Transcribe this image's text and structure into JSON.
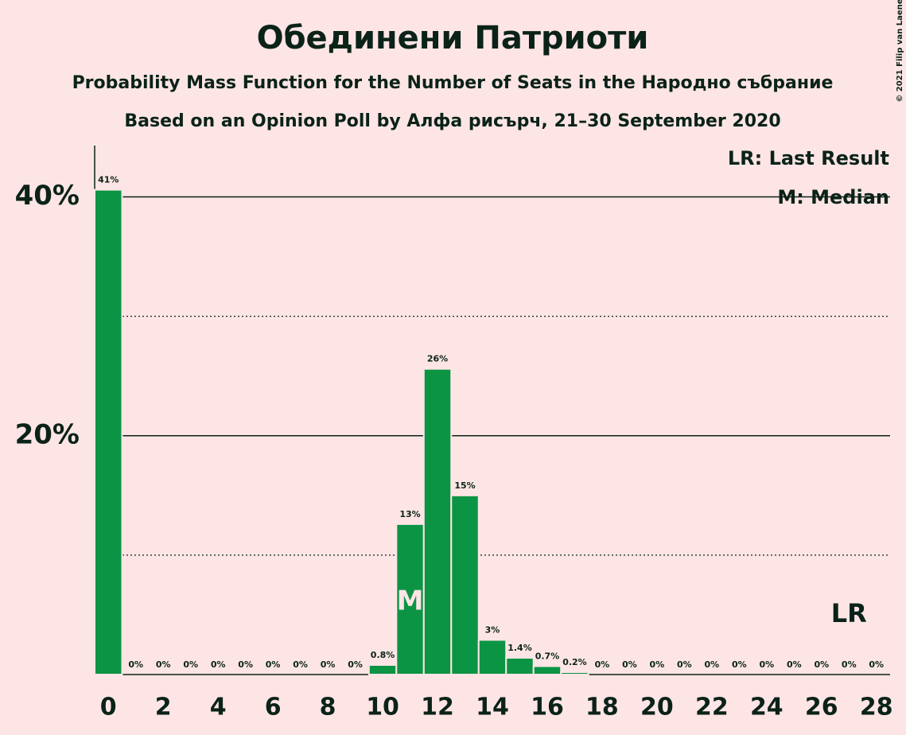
{
  "chart_data": {
    "type": "bar",
    "title": "Обединени Патриоти",
    "subtitle": "Probability Mass Function for the Number of Seats in the Народно събрание",
    "subtitle2": "Based on an Opinion Poll by Алфа рисърч, 21–30 September 2020",
    "copyright": "© 2021 Filip van Laenen",
    "x": [
      0,
      1,
      2,
      3,
      4,
      5,
      6,
      7,
      8,
      9,
      10,
      11,
      12,
      13,
      14,
      15,
      16,
      17,
      18,
      19,
      20,
      21,
      22,
      23,
      24,
      25,
      26,
      27,
      28
    ],
    "values": [
      40.6,
      0,
      0,
      0,
      0,
      0,
      0,
      0,
      0,
      0,
      0.8,
      12.6,
      25.6,
      15.0,
      2.9,
      1.4,
      0.7,
      0.2,
      0,
      0,
      0,
      0,
      0,
      0,
      0,
      0,
      0,
      0,
      0
    ],
    "value_labels": [
      "41%",
      "0%",
      "0%",
      "0%",
      "0%",
      "0%",
      "0%",
      "0%",
      "0%",
      "0%",
      "0.8%",
      "13%",
      "26%",
      "15%",
      "3%",
      "1.4%",
      "0.7%",
      "0.2%",
      "0%",
      "0%",
      "0%",
      "0%",
      "0%",
      "0%",
      "0%",
      "0%",
      "0%",
      "0%",
      "0%"
    ],
    "color": "#0b9444",
    "xlim": [
      -0.5,
      28.5
    ],
    "xticks": [
      0,
      2,
      4,
      6,
      8,
      10,
      12,
      14,
      16,
      18,
      20,
      22,
      24,
      26,
      28
    ],
    "ylim": [
      0,
      44.3
    ],
    "yticks": [
      {
        "value": 20,
        "label": "20%"
      },
      {
        "value": 40,
        "label": "40%"
      }
    ],
    "minor_yticks": [
      10,
      30
    ],
    "grid": true,
    "median": {
      "x": 11,
      "label": "M"
    },
    "last_result": {
      "x": 27,
      "label": "LR"
    },
    "legend": [
      "LR: Last Result",
      "M: Median"
    ]
  }
}
